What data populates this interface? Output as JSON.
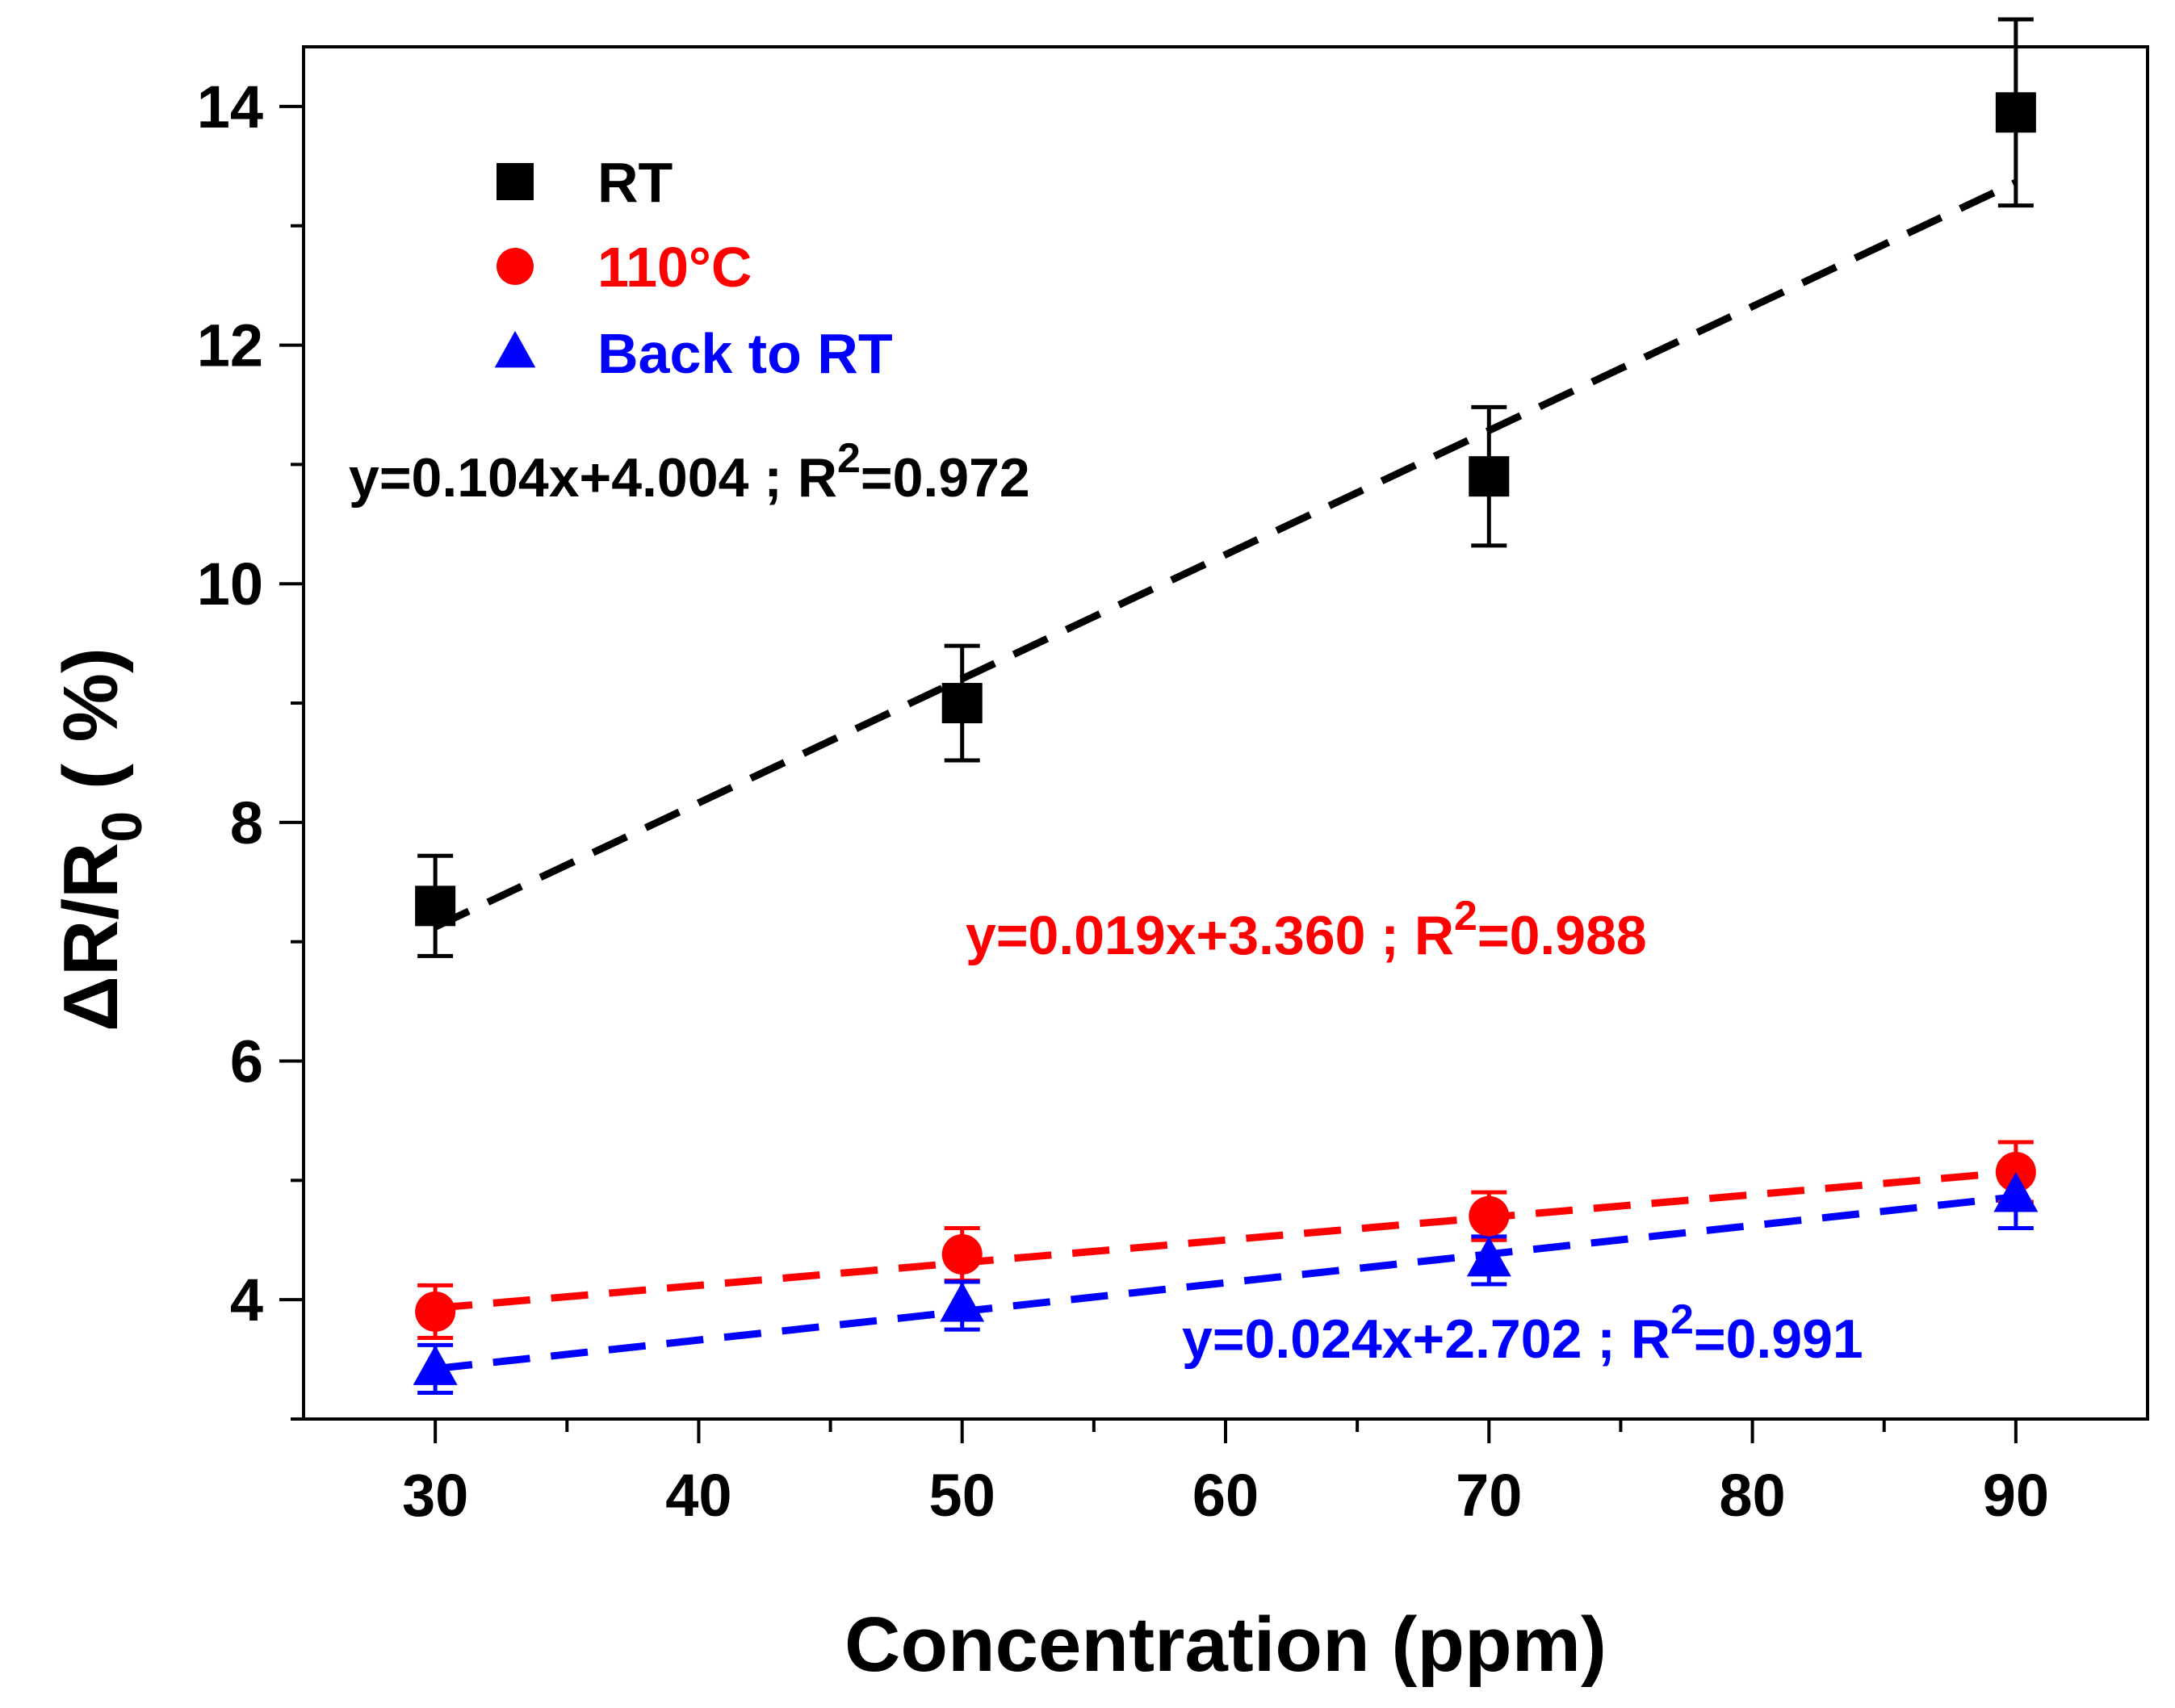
{
  "chart_data": {
    "type": "scatter",
    "xlabel": "Concentration (ppm)",
    "ylabel": "ΔR/R0 ( %)",
    "ylabel_parts": {
      "main": "ΔR/R",
      "sub": "0",
      "unit": " ( %)"
    },
    "xlim": [
      25,
      95
    ],
    "ylim": [
      3,
      14.5
    ],
    "x_ticks": [
      30,
      40,
      50,
      60,
      70,
      80,
      90
    ],
    "x_minor_ticks": [
      35,
      45,
      55,
      65,
      75,
      85
    ],
    "y_ticks": [
      4,
      6,
      8,
      10,
      12,
      14
    ],
    "y_minor_ticks": [
      3,
      5,
      7,
      9,
      11,
      13
    ],
    "grid": false,
    "legend_position": "top-left",
    "series": [
      {
        "name": "RT",
        "marker": "square",
        "color": "#000000",
        "x": [
          30,
          50,
          70,
          90
        ],
        "y": [
          7.3,
          9.0,
          10.9,
          13.95
        ],
        "yerr": [
          0.42,
          0.48,
          0.58,
          0.78
        ],
        "fit": {
          "slope": 0.104,
          "intercept": 4.004,
          "x_range": [
            30,
            90
          ]
        },
        "equation": "y=0.104x+4.004  ; R",
        "r2_exp": "2",
        "r2_value": "=0.972"
      },
      {
        "name": "110°C",
        "marker": "circle",
        "color": "#ff0000",
        "x": [
          30,
          50,
          70,
          90
        ],
        "y": [
          3.9,
          4.38,
          4.7,
          5.07
        ],
        "yerr": [
          0.22,
          0.22,
          0.2,
          0.25
        ],
        "fit": {
          "slope": 0.019,
          "intercept": 3.36,
          "x_range": [
            30,
            90
          ]
        },
        "equation": "y=0.019x+3.360  ; R",
        "r2_exp": "2",
        "r2_value": "=0.988"
      },
      {
        "name": "Back to RT",
        "marker": "triangle",
        "color": "#0000ff",
        "x": [
          30,
          50,
          70,
          90
        ],
        "y": [
          3.42,
          3.95,
          4.33,
          4.87
        ],
        "yerr": [
          0.2,
          0.2,
          0.2,
          0.27
        ],
        "fit": {
          "slope": 0.024,
          "intercept": 2.702,
          "x_range": [
            30,
            90
          ]
        },
        "equation": "y=0.024x+2.702  ; R",
        "r2_exp": "2",
        "r2_value": "=0.991"
      }
    ]
  }
}
